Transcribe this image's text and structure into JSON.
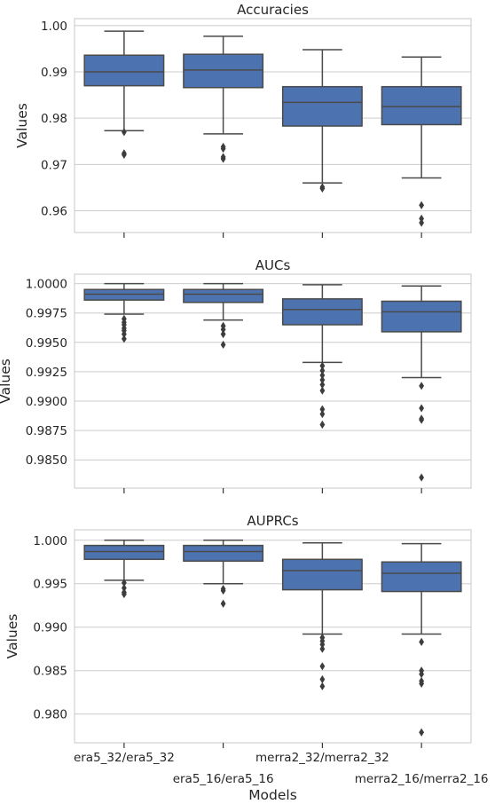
{
  "chart_data": [
    {
      "type": "box",
      "title": "Accuracies",
      "ylabel": "Values",
      "xlabel": "",
      "ylim": [
        0.9553,
        1.0015
      ],
      "yticks": [
        0.96,
        0.97,
        0.98,
        0.99,
        1.0
      ],
      "ytick_labels": [
        "0.96",
        "0.97",
        "0.98",
        "0.99",
        "1.00"
      ],
      "grid": "horizontal",
      "color": "#4c72b0",
      "categories": [
        "era5_32/era5_32",
        "era5_16/era5_16",
        "merra2_32/merra2_32",
        "merra2_16/merra2_16"
      ],
      "boxes": [
        {
          "whisker_low": 0.9773,
          "q1": 0.987,
          "median": 0.99,
          "q3": 0.9936,
          "whisker_high": 0.9988,
          "outliers": [
            0.977,
            0.9724,
            0.9721
          ]
        },
        {
          "whisker_low": 0.9766,
          "q1": 0.9866,
          "median": 0.9904,
          "q3": 0.9938,
          "whisker_high": 0.9977,
          "outliers": [
            0.9738,
            0.9734,
            0.9716,
            0.9712
          ]
        },
        {
          "whisker_low": 0.966,
          "q1": 0.9783,
          "median": 0.9834,
          "q3": 0.9868,
          "whisker_high": 0.9948,
          "outliers": [
            0.9651,
            0.9648
          ]
        },
        {
          "whisker_low": 0.9671,
          "q1": 0.9786,
          "median": 0.9825,
          "q3": 0.9868,
          "whisker_high": 0.9932,
          "outliers": [
            0.9612,
            0.9583,
            0.9574
          ]
        }
      ]
    },
    {
      "type": "box",
      "title": "AUCs",
      "ylabel": "Values",
      "xlabel": "",
      "ylim": [
        0.9826,
        1.0008
      ],
      "yticks": [
        0.985,
        0.9875,
        0.99,
        0.9925,
        0.995,
        0.9975,
        1.0
      ],
      "ytick_labels": [
        "0.9850",
        "0.9875",
        "0.9900",
        "0.9925",
        "0.9950",
        "0.9975",
        "1.0000"
      ],
      "grid": "horizontal",
      "color": "#4c72b0",
      "categories": [
        "era5_32/era5_32",
        "era5_16/era5_16",
        "merra2_32/merra2_32",
        "merra2_16/merra2_16"
      ],
      "boxes": [
        {
          "whisker_low": 0.9974,
          "q1": 0.9986,
          "median": 0.9991,
          "q3": 0.9995,
          "whisker_high": 1.0,
          "outliers": [
            0.997,
            0.9967,
            0.9965,
            0.9962,
            0.996,
            0.9957,
            0.9953
          ]
        },
        {
          "whisker_low": 0.9969,
          "q1": 0.9984,
          "median": 0.9991,
          "q3": 0.9995,
          "whisker_high": 1.0,
          "outliers": [
            0.9964,
            0.9961,
            0.9957,
            0.9948
          ]
        },
        {
          "whisker_low": 0.9933,
          "q1": 0.9965,
          "median": 0.9978,
          "q3": 0.9987,
          "whisker_high": 0.9999,
          "outliers": [
            0.993,
            0.9926,
            0.9922,
            0.9918,
            0.9914,
            0.9909,
            0.9893,
            0.9889,
            0.988
          ]
        },
        {
          "whisker_low": 0.992,
          "q1": 0.9959,
          "median": 0.9976,
          "q3": 0.9985,
          "whisker_high": 0.9998,
          "outliers": [
            0.9913,
            0.9894,
            0.9885,
            0.9884,
            0.9835
          ]
        }
      ]
    },
    {
      "type": "box",
      "title": "AUPRCs",
      "ylabel": "Values",
      "xlabel": "Models",
      "ylim": [
        0.9767,
        1.0012
      ],
      "yticks": [
        0.98,
        0.985,
        0.99,
        0.995,
        1.0
      ],
      "ytick_labels": [
        "0.980",
        "0.985",
        "0.990",
        "0.995",
        "1.000"
      ],
      "grid": "horizontal",
      "color": "#4c72b0",
      "categories": [
        "era5_32/era5_32",
        "era5_16/era5_16",
        "merra2_32/merra2_32",
        "merra2_16/merra2_16"
      ],
      "boxes": [
        {
          "whisker_low": 0.9954,
          "q1": 0.9978,
          "median": 0.9987,
          "q3": 0.9994,
          "whisker_high": 1.0,
          "outliers": [
            0.9951,
            0.9945,
            0.994,
            0.9938
          ]
        },
        {
          "whisker_low": 0.995,
          "q1": 0.9976,
          "median": 0.9987,
          "q3": 0.9994,
          "whisker_high": 1.0,
          "outliers": [
            0.9944,
            0.9942,
            0.9927
          ]
        },
        {
          "whisker_low": 0.9892,
          "q1": 0.9943,
          "median": 0.9965,
          "q3": 0.9978,
          "whisker_high": 0.9997,
          "outliers": [
            0.9888,
            0.9884,
            0.988,
            0.9875,
            0.9855,
            0.984,
            0.9832
          ]
        },
        {
          "whisker_low": 0.9892,
          "q1": 0.9941,
          "median": 0.9962,
          "q3": 0.9975,
          "whisker_high": 0.9996,
          "outliers": [
            0.9883,
            0.985,
            0.9846,
            0.9838,
            0.9835,
            0.9779
          ]
        }
      ]
    }
  ]
}
